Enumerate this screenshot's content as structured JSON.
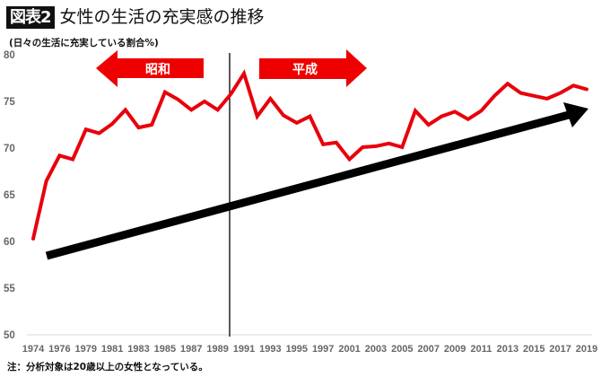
{
  "header": {
    "badge": "図表2",
    "title": "女性の生活の充実感の推移"
  },
  "axis_note": "(日々の生活に充実している割合%)",
  "footnote": "注：分析対象は20歳以上の女性となっている。",
  "eras": {
    "left": "昭和",
    "right": "平成"
  },
  "colors": {
    "line": "#e8000b",
    "era_arrow": "#ee0000",
    "trend_arrow": "#000000",
    "divider": "#000000",
    "badge_bg": "#111111"
  },
  "chart_data": {
    "type": "line",
    "title": "女性の生活の充実感の推移",
    "ylabel": "(日々の生活に充実している割合%)",
    "xlabel": "",
    "ylim": [
      50,
      80
    ],
    "yticks": [
      50,
      55,
      60,
      65,
      70,
      75,
      80
    ],
    "grid": false,
    "legend": "none",
    "x_tick_labels": [
      "1974",
      "1976",
      "1979",
      "1981",
      "1983",
      "1985",
      "1987",
      "1989",
      "1991",
      "1993",
      "1995",
      "1997",
      "2001",
      "2003",
      "2005",
      "2007",
      "2009",
      "2011",
      "2013",
      "2015",
      "2017",
      "2019"
    ],
    "x": [
      "1974",
      "1975",
      "1976",
      "1977",
      "1979",
      "1980",
      "1981",
      "1982",
      "1983",
      "1984",
      "1985",
      "1986",
      "1987",
      "1988",
      "1989",
      "1990",
      "1991",
      "1992",
      "1993",
      "1994",
      "1995",
      "1996",
      "1997",
      "1999",
      "2001",
      "2002",
      "2003",
      "2004",
      "2005",
      "2006",
      "2007",
      "2008",
      "2009",
      "2010",
      "2011",
      "2012",
      "2013",
      "2014",
      "2015",
      "2016",
      "2017",
      "2018",
      "2019"
    ],
    "series": [
      {
        "name": "日々の生活に充実している割合",
        "values": [
          60.3,
          66.5,
          69.2,
          68.8,
          72.0,
          71.6,
          72.6,
          74.1,
          72.2,
          72.5,
          76.0,
          75.2,
          74.1,
          75.0,
          74.1,
          75.8,
          78.0,
          73.4,
          75.3,
          73.5,
          72.7,
          73.4,
          70.4,
          70.6,
          68.8,
          70.1,
          70.2,
          70.5,
          70.1,
          74.0,
          72.5,
          73.4,
          73.9,
          73.1,
          74.0,
          75.6,
          76.9,
          75.9,
          75.6,
          75.3,
          75.9,
          76.7,
          76.3
        ]
      }
    ],
    "annotations": [
      {
        "type": "vertical_line",
        "at": "1990",
        "label": "昭和/平成 boundary"
      },
      {
        "type": "arrow",
        "direction": "left",
        "label": "昭和"
      },
      {
        "type": "arrow",
        "direction": "right",
        "label": "平成"
      },
      {
        "type": "trend_arrow",
        "from": [
          1974,
          58.3
        ],
        "to": [
          2019,
          74.2
        ],
        "label": "upward trend"
      }
    ]
  }
}
